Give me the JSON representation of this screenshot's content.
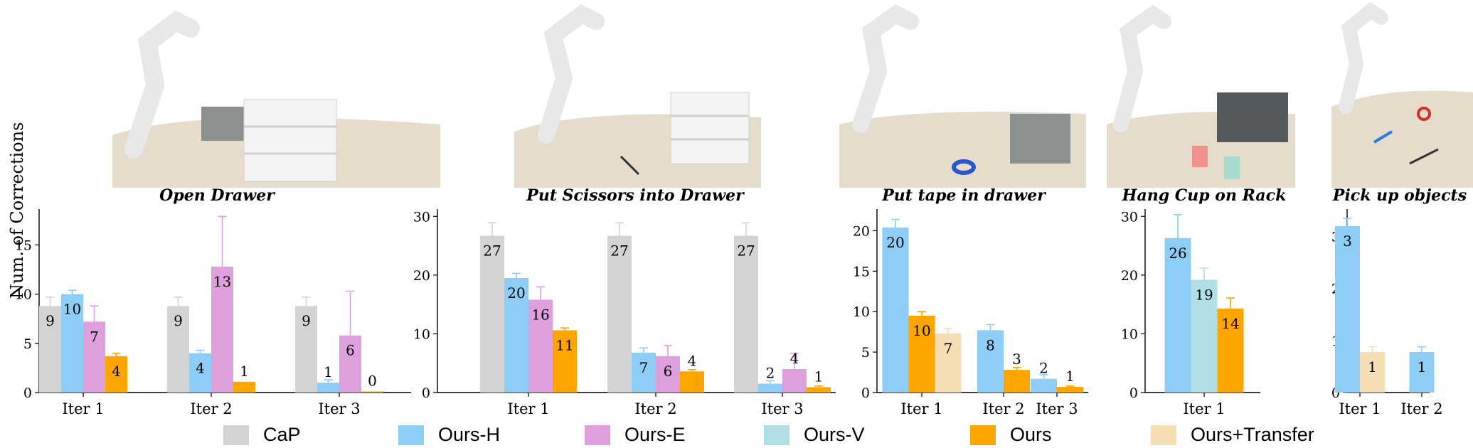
{
  "colors": {
    "CaP": "#d3d3d3",
    "Ours-H": "#8ecdf5",
    "Ours-E": "#dda0dd",
    "Ours-V": "#b0e0e6",
    "Ours": "#ffa500",
    "Ours+Transfer": "#f5deb3"
  },
  "ylabel": "Num. of Corrections",
  "legend": [
    "CaP",
    "Ours-H",
    "Ours-E",
    "Ours-V",
    "Ours",
    "Ours+Transfer"
  ],
  "chart_data": [
    {
      "type": "bar",
      "title": "Open Drawer",
      "categories": [
        "Iter 1",
        "Iter 2",
        "Iter 3"
      ],
      "ylim": [
        0,
        18.5
      ],
      "yticks": [
        0,
        5,
        10,
        15
      ],
      "series": [
        {
          "name": "CaP",
          "values": [
            8.8,
            8.8,
            8.8
          ],
          "errors": [
            0.9,
            0.9,
            0.9
          ],
          "labels": [
            "9",
            "9",
            "9"
          ]
        },
        {
          "name": "Ours-H",
          "values": [
            10.0,
            4.0,
            1.0
          ],
          "errors": [
            0.4,
            0.3,
            0.3
          ],
          "labels": [
            "10",
            "4",
            "1"
          ]
        },
        {
          "name": "Ours-E",
          "values": [
            7.2,
            12.8,
            5.8
          ],
          "errors": [
            1.6,
            5.1,
            4.5
          ],
          "labels": [
            "7",
            "13",
            "6"
          ]
        },
        {
          "name": "Ours",
          "values": [
            3.7,
            1.1,
            0.1
          ],
          "errors": [
            0.3,
            0.0,
            0.0
          ],
          "labels": [
            "4",
            "1",
            "0"
          ]
        }
      ]
    },
    {
      "type": "bar",
      "title": "Put Scissors into Drawer",
      "categories": [
        "Iter 1",
        "Iter 2",
        "Iter 3"
      ],
      "ylim": [
        0,
        31
      ],
      "yticks": [
        0,
        10,
        20,
        30
      ],
      "series": [
        {
          "name": "CaP",
          "values": [
            26.7,
            26.7,
            26.7
          ],
          "errors": [
            2.2,
            2.2,
            2.2
          ],
          "labels": [
            "27",
            "27",
            "27"
          ]
        },
        {
          "name": "Ours-H",
          "values": [
            19.5,
            6.8,
            1.5
          ],
          "errors": [
            0.8,
            0.8,
            0.5
          ],
          "labels": [
            "20",
            "7",
            "2"
          ]
        },
        {
          "name": "Ours-E",
          "values": [
            15.8,
            6.2,
            4.0
          ],
          "errors": [
            2.2,
            1.8,
            2.7
          ],
          "labels": [
            "16",
            "6",
            "4"
          ]
        },
        {
          "name": "Ours",
          "values": [
            10.6,
            3.6,
            0.9
          ],
          "errors": [
            0.4,
            0.3,
            0.2
          ],
          "labels": [
            "11",
            "4",
            "1"
          ]
        }
      ]
    },
    {
      "type": "bar",
      "title": "Put tape in drawer",
      "categories": [
        "Iter 1",
        "Iter 2",
        "Iter 3"
      ],
      "ylim": [
        0,
        22.5
      ],
      "yticks": [
        0,
        5,
        10,
        15,
        20
      ],
      "series": [
        {
          "name": "Ours-H",
          "values": [
            20.4,
            7.7,
            1.7
          ],
          "errors": [
            1.0,
            0.7,
            0.5
          ],
          "labels": [
            "20",
            "8",
            "2"
          ]
        },
        {
          "name": "Ours",
          "values": [
            9.5,
            2.8,
            0.7
          ],
          "errors": [
            0.5,
            0.3,
            0.1
          ],
          "labels": [
            "10",
            "3",
            "1"
          ]
        },
        {
          "name": "Ours+Transfer",
          "values": [
            7.3,
            null,
            null
          ],
          "errors": [
            0.6,
            null,
            null
          ],
          "labels": [
            "7",
            "",
            ""
          ]
        }
      ]
    },
    {
      "type": "bar",
      "title": "Hang Cup on Rack",
      "categories": [
        "Iter 1"
      ],
      "ylim": [
        0,
        31
      ],
      "yticks": [
        0,
        10,
        20,
        30
      ],
      "series": [
        {
          "name": "Ours-H",
          "values": [
            26.3
          ],
          "errors": [
            4.0
          ],
          "labels": [
            "26"
          ]
        },
        {
          "name": "Ours-V",
          "values": [
            19.2
          ],
          "errors": [
            2.0
          ],
          "labels": [
            "19"
          ]
        },
        {
          "name": "Ours",
          "values": [
            14.3
          ],
          "errors": [
            1.8
          ],
          "labels": [
            "14"
          ]
        }
      ]
    },
    {
      "type": "bar",
      "title": "Pick up objects",
      "categories": [
        "Iter 1",
        "Iter 2"
      ],
      "ylim": [
        0,
        3.5
      ],
      "yticks": [
        0,
        1,
        2,
        3
      ],
      "series": [
        {
          "name": "Ours-H",
          "values": [
            3.2,
            0.78
          ],
          "errors": [
            0.15,
            0.1
          ],
          "labels": [
            "3",
            "1"
          ]
        },
        {
          "name": "Ours+Transfer",
          "values": [
            0.78,
            null
          ],
          "errors": [
            0.1,
            null
          ],
          "labels": [
            "1",
            ""
          ]
        }
      ]
    }
  ]
}
